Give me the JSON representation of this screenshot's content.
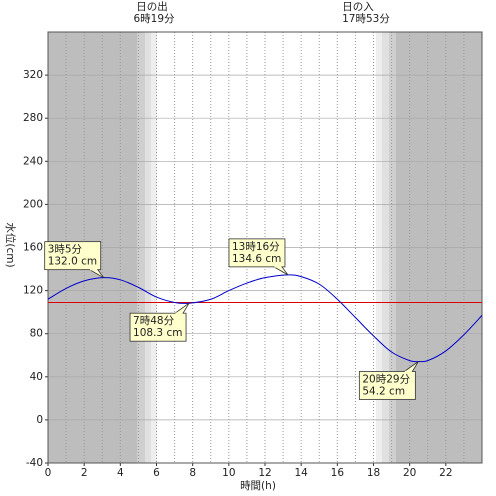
{
  "chart_data": {
    "type": "line",
    "xlabel": "時間(h)",
    "ylabel": "水位(cm)",
    "sunrise": {
      "label": "日の出",
      "time": "6時19分"
    },
    "sunset": {
      "label": "日の入",
      "time": "17時53分"
    },
    "xlim": [
      0,
      24
    ],
    "xticks": [
      0,
      2,
      4,
      6,
      8,
      10,
      12,
      14,
      16,
      18,
      20,
      22
    ],
    "ylim": [
      -40,
      360
    ],
    "yticks": [
      -40,
      0,
      40,
      80,
      120,
      160,
      200,
      240,
      280,
      320
    ],
    "grid": true,
    "series": [
      {
        "color": "#0000cc",
        "x": [
          0,
          1,
          2,
          3.08,
          4,
          5,
          6,
          7,
          7.8,
          9,
          10,
          11,
          12,
          13.27,
          14,
          15,
          16,
          17,
          18,
          19,
          20,
          20.48,
          21,
          22,
          23,
          24
        ],
        "values": [
          112,
          122,
          129,
          132,
          130,
          123,
          114,
          109,
          108.3,
          112,
          120,
          127,
          132,
          134.6,
          133,
          126,
          112,
          95,
          78,
          63,
          55,
          54.2,
          55,
          64,
          79,
          97
        ]
      }
    ],
    "hline": {
      "value": 109,
      "color": "#dd0000"
    },
    "annotations": [
      {
        "x": 3.08,
        "y": 132.0,
        "side": "above",
        "text": [
          "3時5分",
          "132.0 cm"
        ]
      },
      {
        "x": 7.8,
        "y": 108.3,
        "side": "below",
        "text": [
          "7時48分",
          "108.3 cm"
        ]
      },
      {
        "x": 13.27,
        "y": 134.6,
        "side": "above",
        "text": [
          "13時16分",
          "134.6 cm"
        ]
      },
      {
        "x": 20.48,
        "y": 54.2,
        "side": "below",
        "text": [
          "20時29分",
          "54.2 cm"
        ]
      }
    ]
  }
}
